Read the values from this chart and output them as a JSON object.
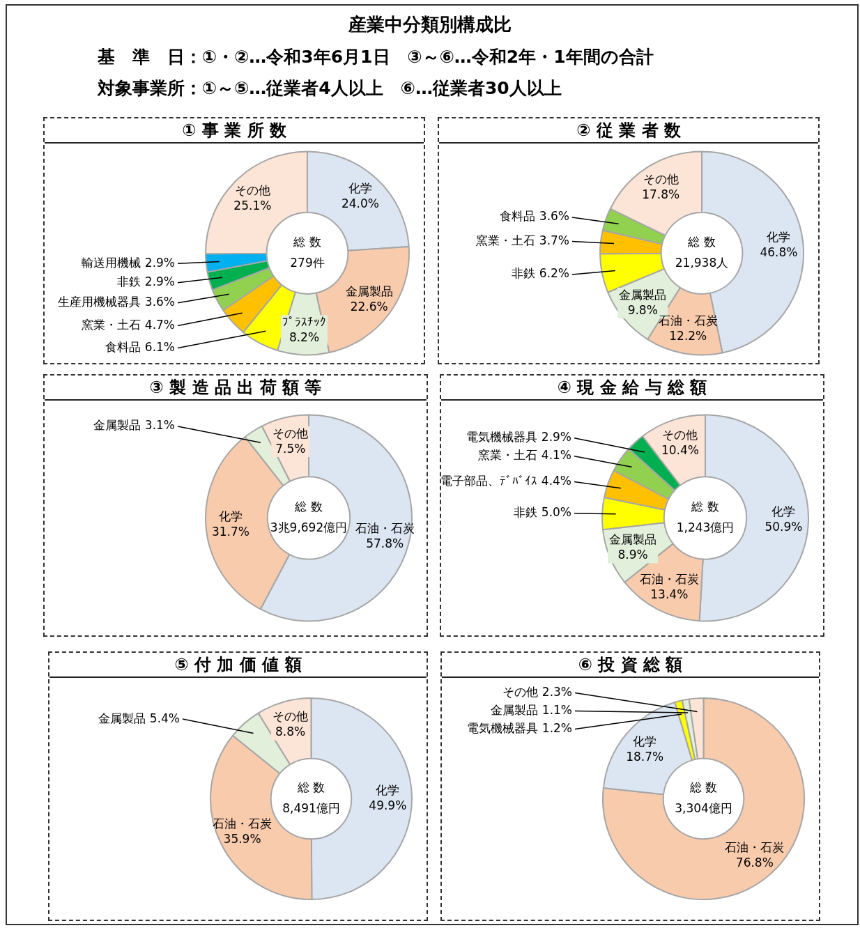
{
  "chart_data": [
    {
      "type": "other",
      "title": "産業中分類別構成比",
      "annotations": [
        "基　準　日：①・②…令和3年6月1日　③～⑥…令和2年・1年間の合計",
        "対象事業所：①～⑤…従業者4人以上　⑥…従業者30人以上"
      ]
    },
    {
      "type": "donut",
      "title": "① 事 業 所 数",
      "categories": [
        "化学",
        "金属製品",
        "ﾌﾟﾗｽﾁｯｸ",
        "食料品",
        "窯業・土石",
        "生産用機械器具",
        "非鉄",
        "輸送用機械",
        "その他"
      ],
      "values": [
        24.0,
        22.6,
        8.2,
        6.1,
        4.7,
        3.6,
        2.9,
        2.9,
        25.1
      ],
      "value_labels": [
        "24.0%",
        "22.6%",
        "8.2%",
        "6.1%",
        "4.7%",
        "3.6%",
        "2.9%",
        "2.9%",
        "25.1%"
      ],
      "colors": [
        "#dce6f2",
        "#f8cbad",
        "#e2efda",
        "#ffff00",
        "#ffc000",
        "#92d050",
        "#00b050",
        "#00b0f0",
        "#fce4d6"
      ],
      "annotations": [
        "総 数",
        "279件"
      ]
    },
    {
      "type": "donut",
      "title": "② 従 業 者 数",
      "categories": [
        "化学",
        "石油・石炭",
        "金属製品",
        "非鉄",
        "窯業・土石",
        "食料品",
        "その他"
      ],
      "values": [
        46.8,
        12.2,
        9.8,
        6.2,
        3.7,
        3.6,
        17.8
      ],
      "value_labels": [
        "46.8%",
        "12.2%",
        "9.8%",
        "6.2%",
        "3.7%",
        "3.6%",
        "17.8%"
      ],
      "colors": [
        "#dce6f2",
        "#f8cbad",
        "#e2efda",
        "#ffff00",
        "#ffc000",
        "#92d050",
        "#fce4d6"
      ],
      "annotations": [
        "総 数",
        "21,938人"
      ]
    },
    {
      "type": "donut",
      "title": "③ 製 造 品 出 荷 額 等",
      "categories": [
        "石油・石炭",
        "化学",
        "金属製品",
        "その他"
      ],
      "values": [
        57.8,
        31.7,
        3.1,
        7.5
      ],
      "value_labels": [
        "57.8%",
        "31.7%",
        "3.1%",
        "7.5%"
      ],
      "colors": [
        "#dce6f2",
        "#f8cbad",
        "#e2efda",
        "#fce4d6"
      ],
      "annotations": [
        "総 数",
        "3兆9,692億円"
      ]
    },
    {
      "type": "donut",
      "title": "④ 現 金 給 与 総 額",
      "categories": [
        "化学",
        "石油・石炭",
        "金属製品",
        "非鉄",
        "電子部品、ﾃﾞﾊﾞｲｽ",
        "窯業・土石",
        "電気機械器具",
        "その他"
      ],
      "values": [
        50.9,
        13.4,
        8.9,
        5.0,
        4.4,
        4.1,
        2.9,
        10.4
      ],
      "value_labels": [
        "50.9%",
        "13.4%",
        "8.9%",
        "5.0%",
        "4.4%",
        "4.1%",
        "2.9%",
        "10.4%"
      ],
      "colors": [
        "#dce6f2",
        "#f8cbad",
        "#e2efda",
        "#ffff00",
        "#ffc000",
        "#92d050",
        "#00b050",
        "#fce4d6"
      ],
      "annotations": [
        "総 数",
        "1,243億円"
      ]
    },
    {
      "type": "donut",
      "title": "⑤ 付 加 価 値 額",
      "categories": [
        "化学",
        "石油・石炭",
        "金属製品",
        "その他"
      ],
      "values": [
        49.9,
        35.9,
        5.4,
        8.8
      ],
      "value_labels": [
        "49.9%",
        "35.9%",
        "5.4%",
        "8.8%"
      ],
      "colors": [
        "#dce6f2",
        "#f8cbad",
        "#e2efda",
        "#fce4d6"
      ],
      "annotations": [
        "総 数",
        "8,491億円"
      ]
    },
    {
      "type": "donut",
      "title": "⑥ 投 資 総 額",
      "categories": [
        "石油・石炭",
        "化学",
        "電気機械器具",
        "金属製品",
        "その他"
      ],
      "values": [
        76.8,
        18.7,
        1.2,
        1.1,
        2.3
      ],
      "value_labels": [
        "76.8%",
        "18.7%",
        "1.2%",
        "1.1%",
        "2.3%"
      ],
      "colors": [
        "#f8cbad",
        "#dce6f2",
        "#ffff00",
        "#e2efda",
        "#fce4d6"
      ],
      "annotations": [
        "総 数",
        "3,304億円"
      ]
    }
  ]
}
